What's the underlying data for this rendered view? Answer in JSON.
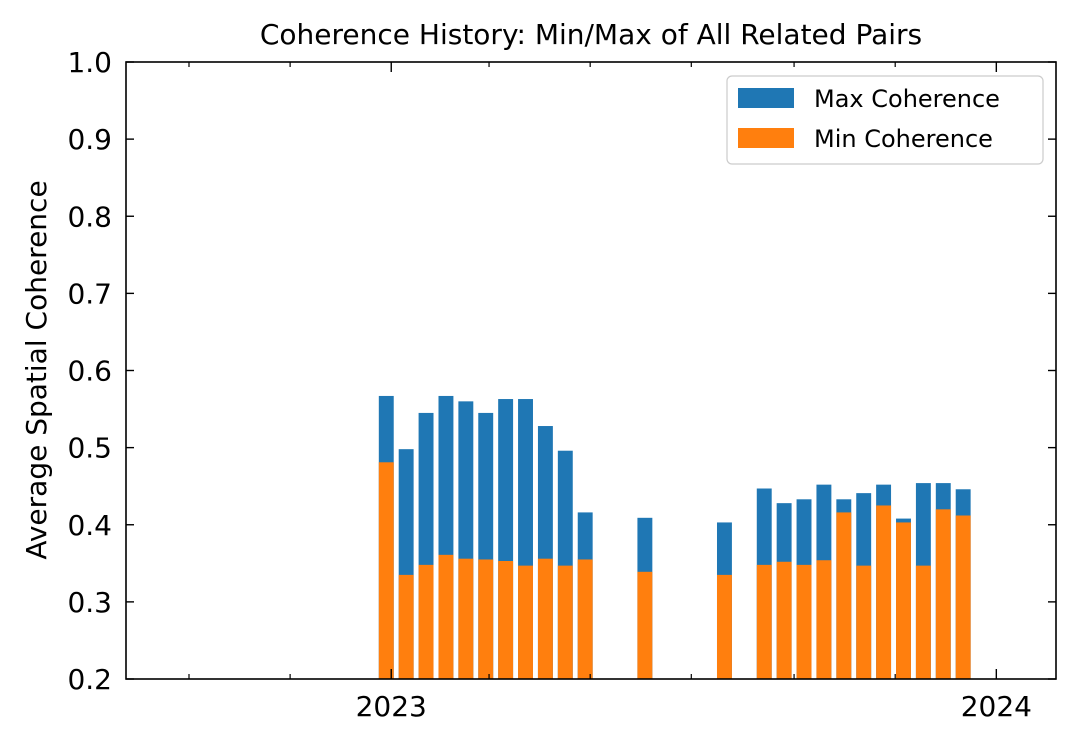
{
  "chart_data": {
    "type": "bar",
    "title": "Coherence History: Min/Max of All Related Pairs",
    "xlabel": "",
    "ylabel": "Average Spatial Coherence",
    "ylim": [
      0.2,
      1.0
    ],
    "yticks": [
      "0.2",
      "0.3",
      "0.4",
      "0.5",
      "0.6",
      "0.7",
      "0.8",
      "0.9",
      "1.0"
    ],
    "xlim": [
      "2022-07-25",
      "2024-02-06"
    ],
    "xticks": [
      {
        "date": "2023-01-01",
        "label": "2023"
      },
      {
        "date": "2024-01-01",
        "label": "2024"
      }
    ],
    "x_minor_ticks": [
      "2022-09-01",
      "2022-11-01",
      "2023-03-01",
      "2023-05-01",
      "2023-07-01",
      "2023-09-01",
      "2023-11-01"
    ],
    "legend_position": "top-right",
    "bar_width_days": 9,
    "series": [
      {
        "name": "Max Coherence",
        "color": "#1f77b4",
        "values": [
          0.567,
          0.498,
          0.545,
          0.567,
          0.56,
          0.545,
          0.563,
          0.563,
          0.528,
          0.496,
          0.416,
          0.409,
          0.403,
          0.447,
          0.428,
          0.433,
          0.452,
          0.433,
          0.441,
          0.452,
          0.408,
          0.454,
          0.454,
          0.446
        ]
      },
      {
        "name": "Min Coherence",
        "color": "#ff7f0e",
        "values": [
          0.481,
          0.335,
          0.348,
          0.361,
          0.356,
          0.355,
          0.353,
          0.347,
          0.356,
          0.347,
          0.355,
          0.339,
          0.335,
          0.348,
          0.352,
          0.348,
          0.354,
          0.416,
          0.347,
          0.425,
          0.403,
          0.347,
          0.42,
          0.412
        ]
      }
    ],
    "x": [
      "2022-12-29",
      "2023-01-10",
      "2023-01-22",
      "2023-02-03",
      "2023-02-15",
      "2023-02-27",
      "2023-03-11",
      "2023-03-23",
      "2023-04-04",
      "2023-04-16",
      "2023-04-28",
      "2023-06-03",
      "2023-07-21",
      "2023-08-14",
      "2023-08-26",
      "2023-09-07",
      "2023-09-19",
      "2023-10-01",
      "2023-10-13",
      "2023-10-25",
      "2023-11-06",
      "2023-11-18",
      "2023-11-30",
      "2023-12-12"
    ]
  }
}
